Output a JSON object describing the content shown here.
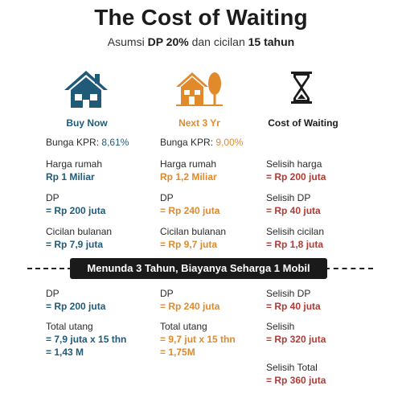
{
  "header": {
    "title": "The Cost of Waiting",
    "subtitle_prefix": "Asumsi",
    "subtitle_dp": "DP 20%",
    "subtitle_mid": "dan cicilan",
    "subtitle_tenor": "15 tahun"
  },
  "columns": {
    "buy_now": {
      "heading": "Buy Now",
      "icon": "house-icon",
      "color": "#1f5a78"
    },
    "next_3yr": {
      "heading": "Next 3 Yr",
      "icon": "house-tree-icon",
      "color": "#e08a2c"
    },
    "cost": {
      "heading": "Cost of Waiting",
      "icon": "hourglass-icon",
      "color": "#1c1c1c"
    }
  },
  "top_rows": {
    "buy_now": {
      "bunga_label": "Bunga KPR:",
      "bunga_value": "8,61%",
      "harga_label": "Harga rumah",
      "harga_value": "Rp 1 Miliar",
      "dp_label": "DP",
      "dp_value": "= Rp 200 juta",
      "cicilan_label": "Cicilan bulanan",
      "cicilan_value": "= Rp 7,9 juta"
    },
    "next_3yr": {
      "bunga_label": "Bunga KPR:",
      "bunga_value": "9,00%",
      "harga_label": "Harga rumah",
      "harga_value": "Rp 1,2 Miliar",
      "dp_label": "DP",
      "dp_value": "= Rp 240 juta",
      "cicilan_label": "Cicilan bulanan",
      "cicilan_value": "= Rp 9,7 juta"
    },
    "cost": {
      "harga_label": "Selisih harga",
      "harga_value": "= Rp 200 juta",
      "dp_label": "Selisih DP",
      "dp_value": "= Rp 40 juta",
      "cicilan_label": "Selisih cicilan",
      "cicilan_value": "= Rp 1,8 juta"
    }
  },
  "banner": "Menunda 3 Tahun, Biayanya Seharga 1 Mobil",
  "bottom_rows": {
    "buy_now": {
      "dp_label": "DP",
      "dp_value": "= Rp 200 juta",
      "total_label": "Total utang",
      "total_line1": "= 7,9 juta x 15 thn",
      "total_line2": "= 1,43 M"
    },
    "next_3yr": {
      "dp_label": "DP",
      "dp_value": "= Rp 240 juta",
      "total_label": "Total utang",
      "total_line1": "= 9,7 jut x 15 thn",
      "total_line2": "= 1,75M"
    },
    "cost": {
      "dp_label": "Selisih DP",
      "dp_value": "= Rp 40 juta",
      "selisih_label": "Selisih",
      "selisih_value": "= Rp 320 juta",
      "total_label": "Selisih Total",
      "total_value": "= Rp 360 juta"
    }
  },
  "colors": {
    "blue": "#1f5a78",
    "orange": "#e08a2c",
    "red": "#b23a34",
    "banner_bg": "#1a1a1a"
  }
}
